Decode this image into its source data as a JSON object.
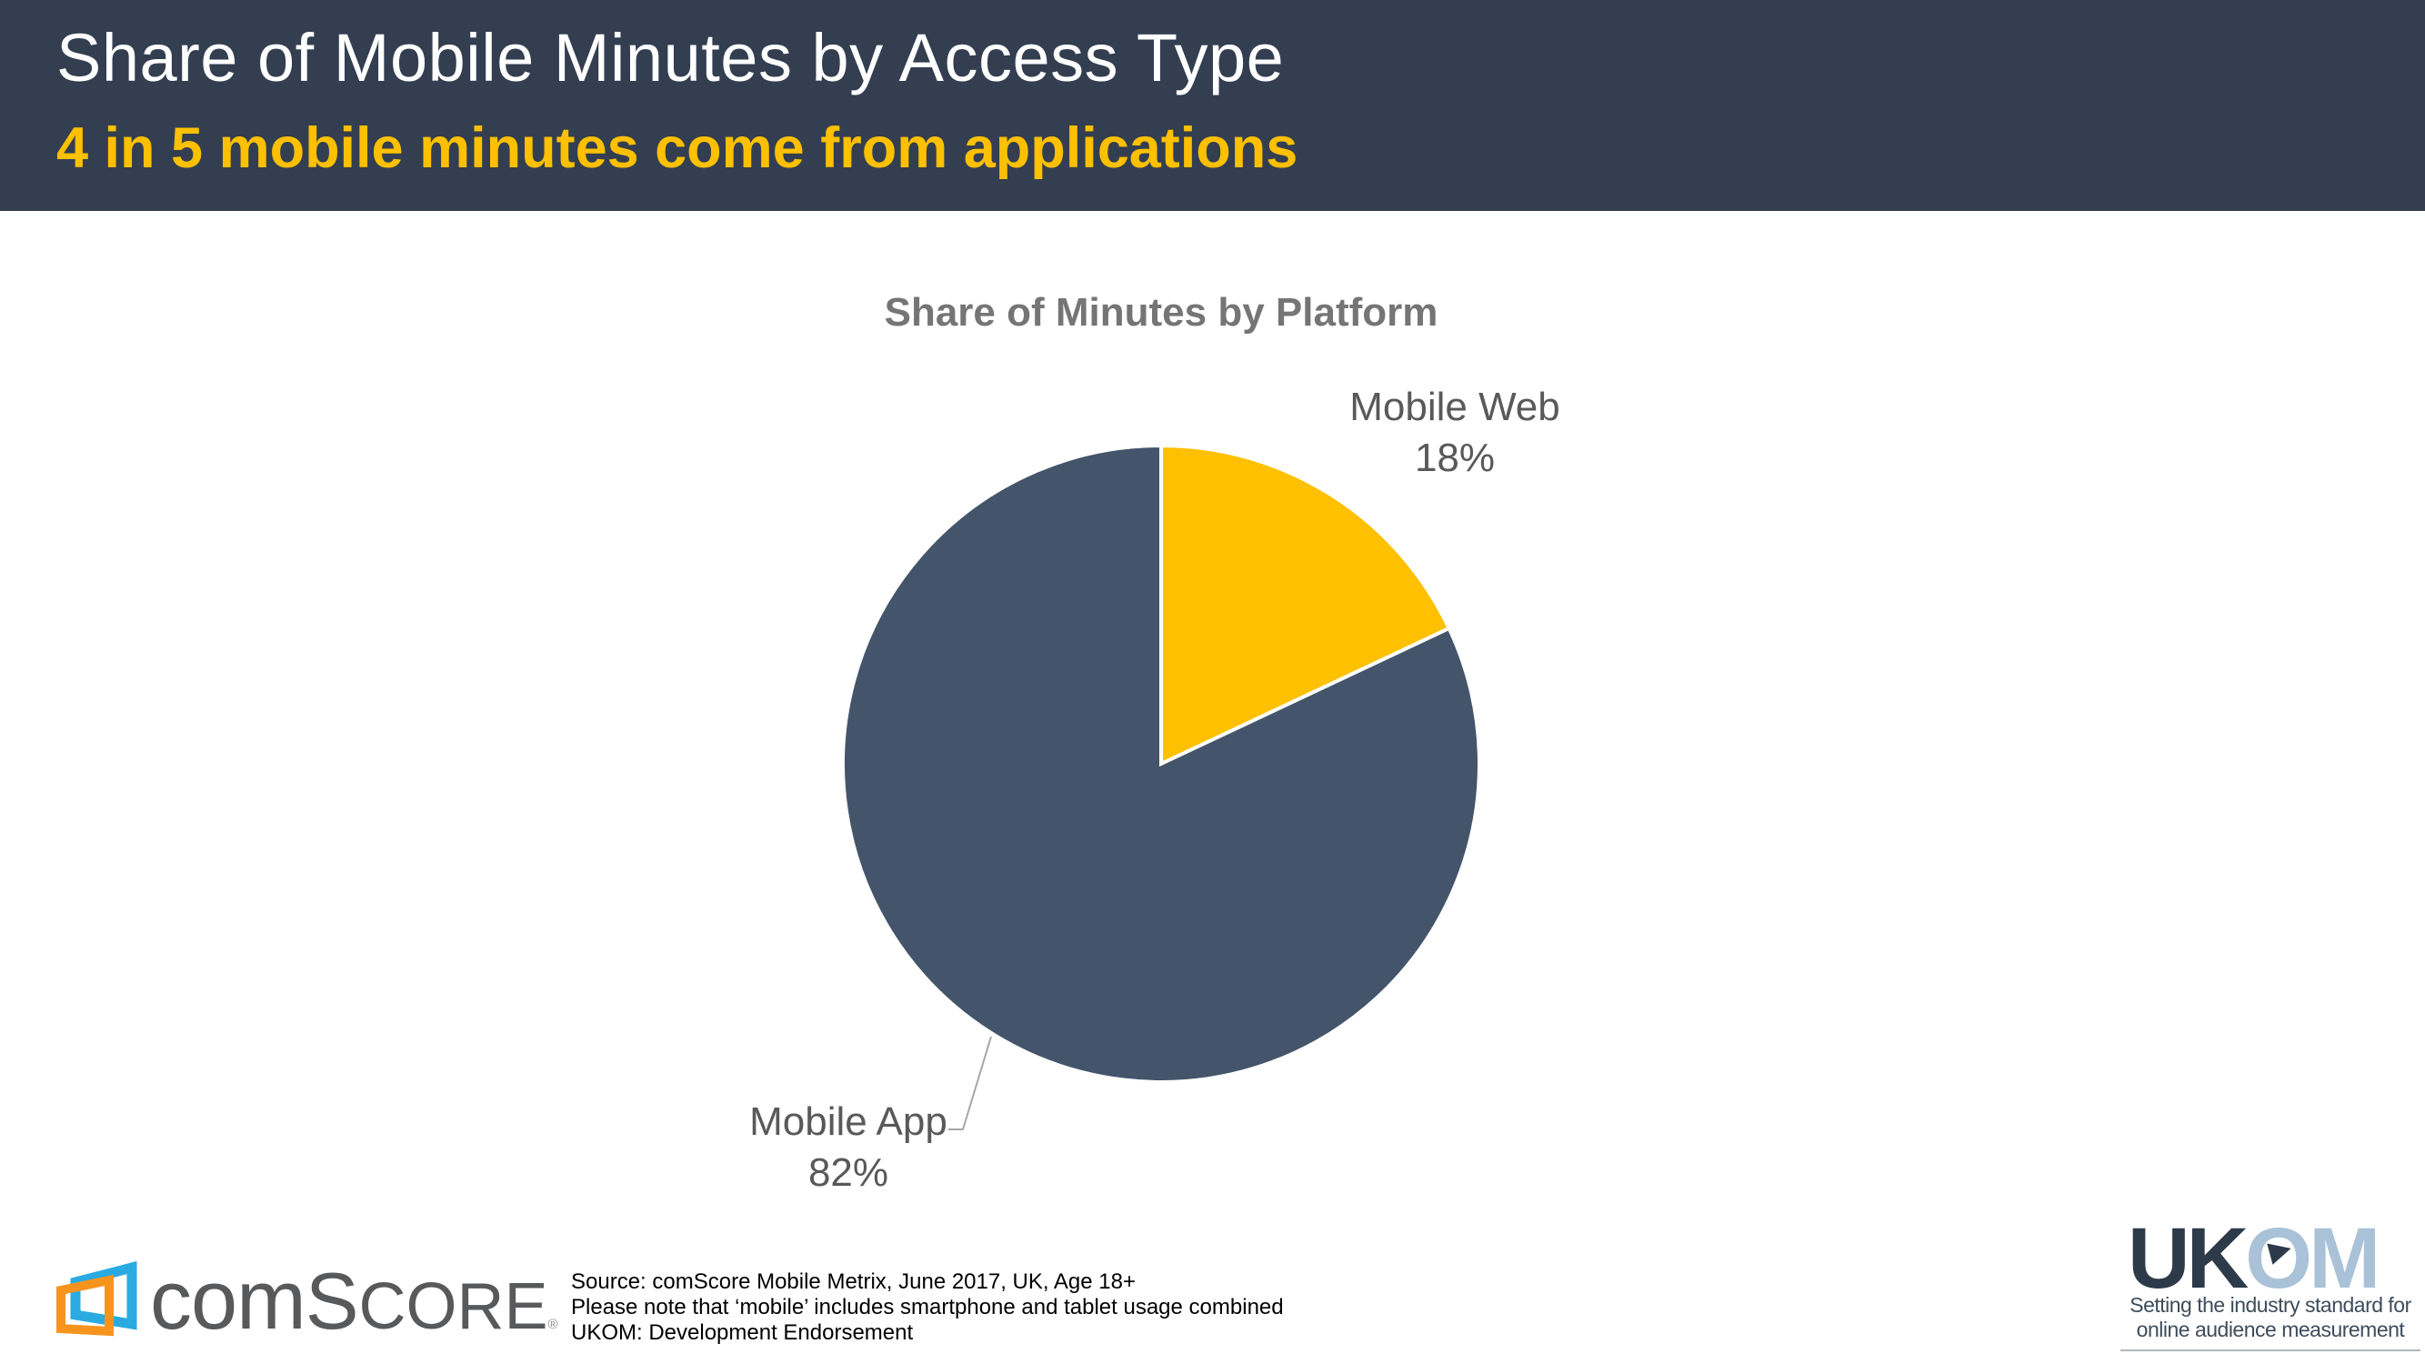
{
  "header": {
    "title": "Share of Mobile Minutes by Access Type",
    "subtitle": "4 in 5 mobile minutes come from applications",
    "background_color": "#333E50",
    "title_color": "#FFFFFF",
    "subtitle_color": "#FFC000"
  },
  "chart_data": {
    "type": "pie",
    "title": "Share of Minutes by Platform",
    "start_angle_deg": 0,
    "direction": "clockwise",
    "separator_color": "#FFFFFF",
    "legend_position": "data-labels-outside",
    "slices": [
      {
        "label": "Mobile Web",
        "value": 18,
        "pct_text": "18%",
        "color": "#FFC000"
      },
      {
        "label": "Mobile App",
        "value": 82,
        "pct_text": "82%",
        "color": "#44546A"
      }
    ]
  },
  "footer": {
    "source_lines": [
      "Source: comScore Mobile Metrix, June 2017, UK, Age 18+",
      "Please note that ‘mobile’ includes smartphone and tablet usage combined",
      "UKOM: Development Endorsement"
    ],
    "comscore_logo": {
      "text_com": "com",
      "text_s": "S",
      "text_core": "CORE",
      "reg_mark": "®",
      "blue": "#29ABE2",
      "orange": "#F7941E",
      "text_color": "#58595B"
    },
    "ukom_logo": {
      "text_uk": "UK",
      "text_o": "O",
      "text_m": "M",
      "tagline_line1": "Setting the industry standard for",
      "tagline_line2": "online audience measurement",
      "dark_color": "#2C3A4A",
      "light_color": "#A9C2D8"
    }
  }
}
